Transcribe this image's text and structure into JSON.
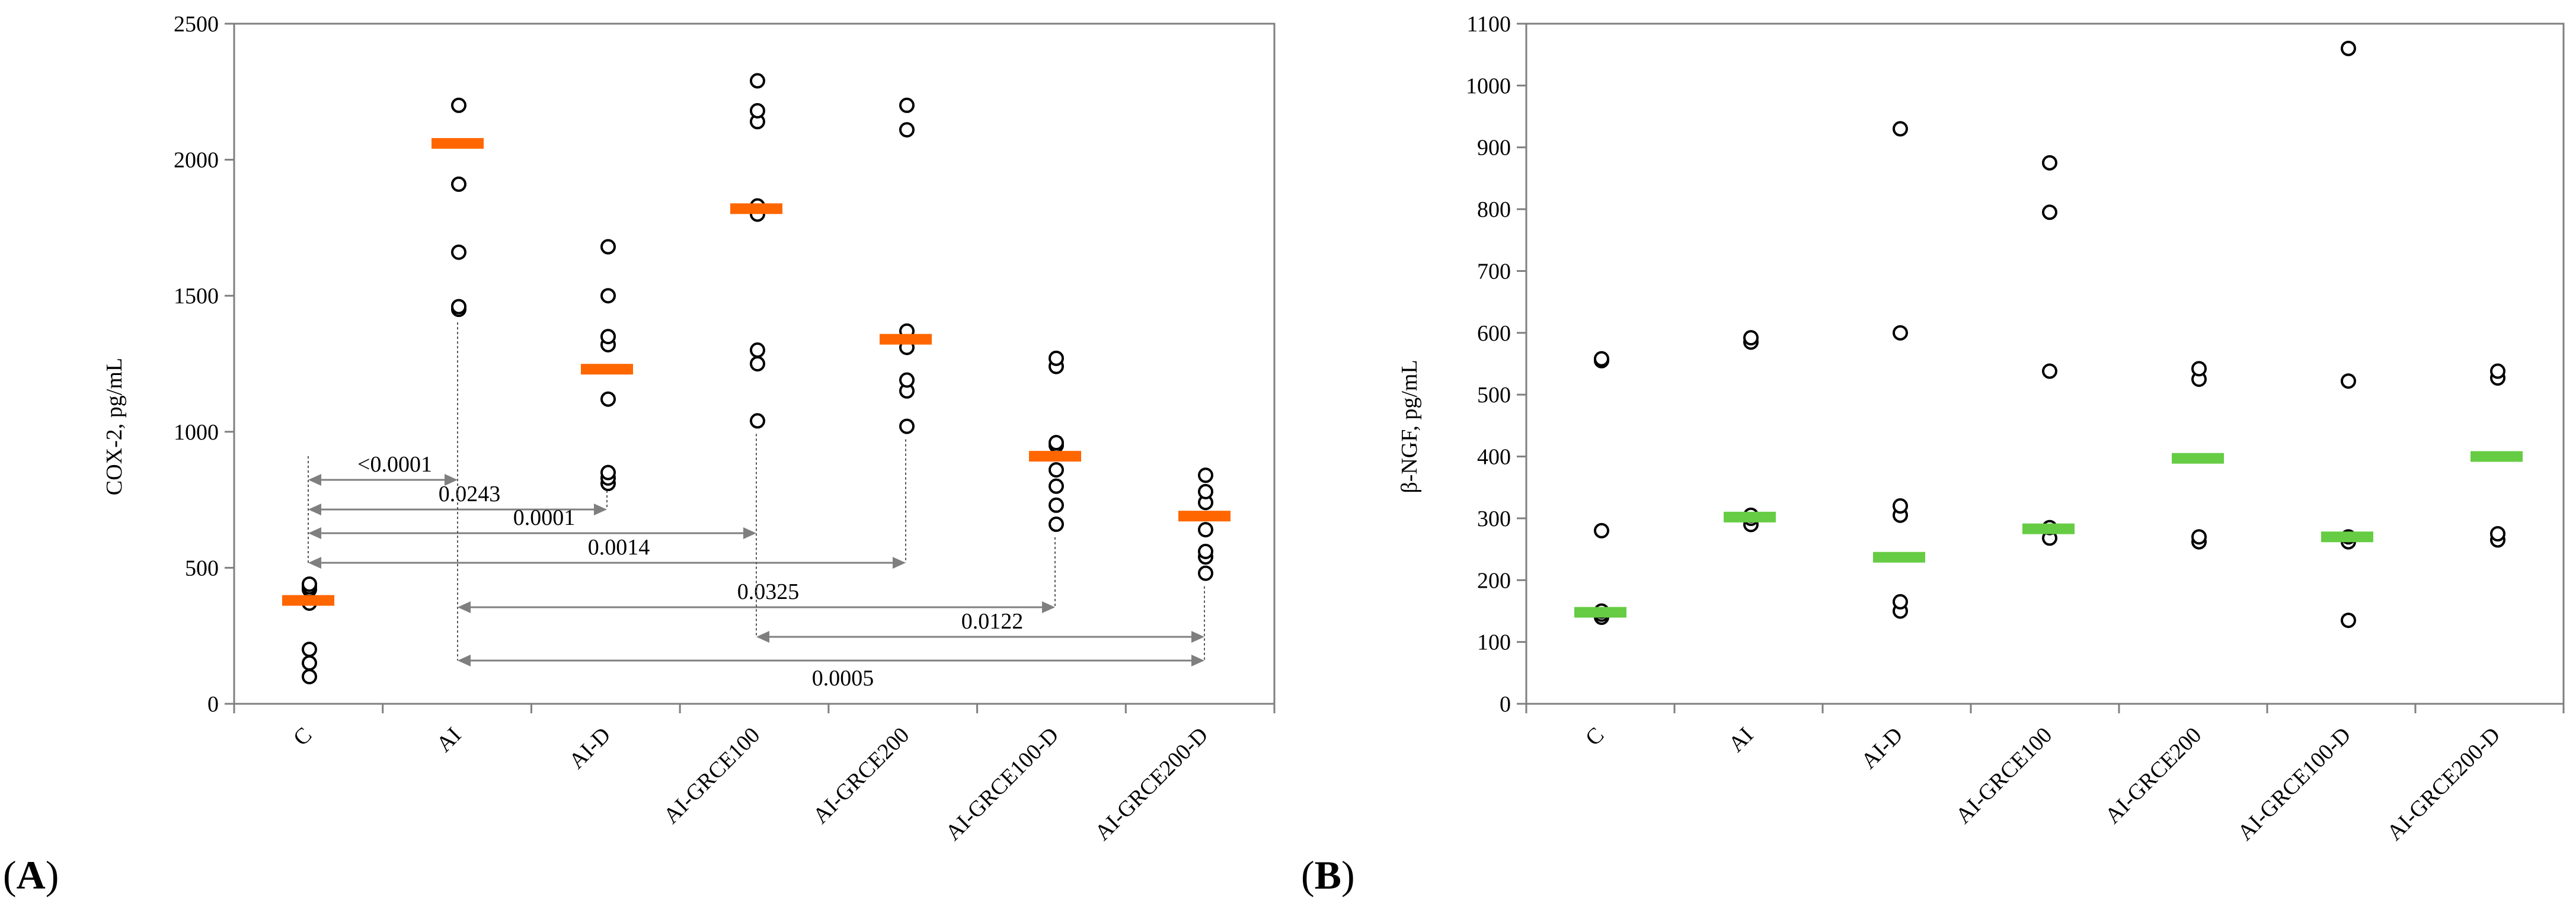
{
  "panels": [
    {
      "label_open": "(",
      "label_letter": "A",
      "label_close": ")",
      "chart_data": {
        "type": "scatter",
        "ylabel": "COX-2, pg/mL",
        "xlabel": "",
        "ylim": [
          0,
          2500
        ],
        "yticks": [
          0,
          500,
          1000,
          1500,
          2000,
          2500
        ],
        "grid": false,
        "categories": [
          "C",
          "AI",
          "AI-D",
          "AI-GRCE100",
          "AI-GRCE200",
          "AI-GRCE100-D",
          "AI-GRCE200-D"
        ],
        "mean_color": "#ff6600",
        "points": [
          [
            100,
            150,
            200,
            370,
            420,
            430,
            440
          ],
          [
            1450,
            1460,
            1660,
            1910,
            2200
          ],
          [
            810,
            830,
            850,
            1120,
            1320,
            1350,
            1500,
            1680
          ],
          [
            1040,
            1250,
            1300,
            1800,
            1830,
            2140,
            2180,
            2290
          ],
          [
            1020,
            1150,
            1190,
            1310,
            1370,
            2110,
            2200
          ],
          [
            660,
            730,
            800,
            860,
            950,
            960,
            1240,
            1270
          ],
          [
            480,
            540,
            560,
            640,
            740,
            780,
            840
          ]
        ],
        "means": [
          380,
          2060,
          1230,
          1820,
          1340,
          910,
          690
        ],
        "comparisons": [
          {
            "from": 0,
            "to": 1,
            "p": "<0.0001"
          },
          {
            "from": 0,
            "to": 2,
            "p": "0.0243"
          },
          {
            "from": 0,
            "to": 3,
            "p": "0.0001"
          },
          {
            "from": 0,
            "to": 4,
            "p": "0.0014"
          },
          {
            "from": 1,
            "to": 5,
            "p": "0.0325"
          },
          {
            "from": 3,
            "to": 6,
            "p": "0.0122"
          },
          {
            "from": 1,
            "to": 6,
            "p": "0.0005"
          }
        ]
      }
    },
    {
      "label_open": "(",
      "label_letter": "B",
      "label_close": ")",
      "chart_data": {
        "type": "scatter",
        "ylabel": "β-NGF, pg/mL",
        "xlabel": "",
        "ylim": [
          0,
          1100
        ],
        "yticks": [
          0,
          100,
          200,
          300,
          400,
          500,
          600,
          700,
          800,
          900,
          1000,
          1100
        ],
        "grid": false,
        "categories": [
          "C",
          "AI",
          "AI-D",
          "AI-GRCE100",
          "AI-GRCE200",
          "AI-GRCE100-D",
          "AI-GRCE200-D"
        ],
        "mean_color": "#66cc44",
        "points": [
          [
            140,
            145,
            150,
            280,
            555,
            558
          ],
          [
            290,
            300,
            305,
            585,
            592
          ],
          [
            150,
            165,
            305,
            320,
            600,
            930
          ],
          [
            268,
            285,
            538,
            795,
            875
          ],
          [
            262,
            270,
            525,
            542
          ],
          [
            135,
            262,
            270,
            522,
            1060
          ],
          [
            265,
            275,
            527,
            538
          ]
        ],
        "means": [
          148,
          302,
          237,
          283,
          397,
          270,
          400
        ],
        "comparisons": []
      }
    }
  ]
}
